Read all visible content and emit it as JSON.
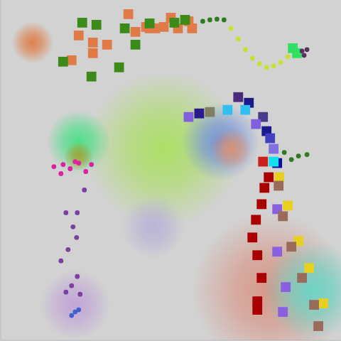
{
  "chart_data": {
    "type": "scatter",
    "xlim": [
      0,
      480
    ],
    "ylim": [
      0,
      480
    ],
    "tick_labels": false,
    "grid": false,
    "series": [
      {
        "marker": "cloud",
        "colors": [
          "#a8e05a",
          "#6a8adf",
          "#e0906a",
          "#40e080",
          "#a0a030",
          "#c0a0d8",
          "#b8b0d8",
          "#d89080",
          "#60d8c8",
          "#e07840"
        ],
        "x": [
          230,
          310,
          325,
          110,
          110,
          105,
          215,
          380,
          440,
          45
        ],
        "y": [
          270,
          280,
          270,
          280,
          260,
          50,
          160,
          70,
          70,
          420
        ],
        "size": [
          84,
          21,
          6,
          14,
          3,
          17,
          14,
          84,
          34,
          6
        ]
      },
      {
        "marker": "square",
        "color": "#e07b48",
        "x": [
          180,
          210,
          190,
          230,
          240,
          250,
          265,
          270,
          110,
          130,
          150,
          100,
          130,
          205,
          218
        ],
        "y": [
          460,
          440,
          435,
          442,
          455,
          440,
          450,
          440,
          430,
          420,
          417,
          395,
          405,
          442,
          440
        ]
      },
      {
        "marker": "square",
        "color": "#3c8a1a",
        "x": [
          115,
          135,
          175,
          190,
          210,
          88,
          167,
          128,
          245,
          260
        ],
        "y": [
          448,
          445,
          440,
          417,
          447,
          393,
          385,
          372,
          448,
          452
        ]
      },
      {
        "marker": "circle",
        "color": "#2e7a1e",
        "x": [
          285,
          295,
          305,
          315,
          400,
          410,
          420,
          432
        ],
        "y": [
          450,
          452,
          453,
          452,
          265,
          255,
          260,
          262
        ]
      },
      {
        "marker": "circle",
        "color": "#c8e030",
        "x": [
          325,
          335,
          345,
          355,
          365,
          375,
          385,
          395,
          405
        ],
        "y": [
          440,
          425,
          410,
          398,
          390,
          385,
          387,
          392,
          400
        ]
      },
      {
        "marker": "square",
        "color": "#30e060",
        "x": [
          412,
          418
        ],
        "y": [
          412,
          405
        ]
      },
      {
        "marker": "circle",
        "color": "#5a3060",
        "x": [
          425,
          432,
          428
        ],
        "y": [
          408,
          410,
          402
        ]
      },
      {
        "marker": "square",
        "colors": [
          "#4a2a7a",
          "#1a1a8a",
          "#30c0f0",
          "#30c0f0",
          "#4a3a8a",
          "#8060e0",
          "#1a1a8a",
          "#4040c0",
          "#8070e0",
          "#1010a0",
          "#cc2020",
          "#10e0f0",
          "#2a1a8a",
          "#8060e0",
          "#808060"
        ],
        "x": [
          335,
          350,
          320,
          345,
          370,
          360,
          375,
          380,
          385,
          390,
          370,
          385,
          280,
          265,
          295
        ],
        "y": [
          343,
          335,
          325,
          325,
          315,
          305,
          295,
          285,
          270,
          250,
          252,
          252,
          320,
          315,
          322
        ]
      },
      {
        "marker": "square",
        "color": "#aa0000",
        "x": [
          372,
          368,
          360,
          355,
          362,
          368,
          362,
          362,
          378
        ],
        "y": [
          215,
          192,
          170,
          145,
          120,
          88,
          55,
          43,
          230
        ]
      },
      {
        "marker": "square",
        "color": "#e8d020",
        "x": [
          393,
          405,
          420,
          435,
          455
        ],
        "y": [
          230,
          190,
          140,
          102,
          52
        ]
      },
      {
        "marker": "square",
        "color": "#8a60e0",
        "x": [
          390,
          390,
          402,
          398
        ],
        "y": [
          185,
          125,
          75,
          40
        ]
      },
      {
        "marker": "square",
        "color": "#9a6a5a",
        "x": [
          392,
          398,
          410,
          425,
          442,
          448
        ],
        "y": [
          218,
          175,
          132,
          88,
          50,
          20
        ]
      },
      {
        "marker": "circle",
        "color": "#e020a0",
        "x": [
          75,
          88,
          98,
          110,
          120,
          105,
          85,
          128
        ],
        "y": [
          245,
          248,
          242,
          250,
          238,
          252,
          235,
          248
        ]
      },
      {
        "marker": "circle",
        "color": "#7a40a0",
        "x": [
          118,
          108,
          102,
          107,
          95,
          85,
          108,
          100,
          92,
          112,
          92
        ],
        "y": [
          212,
          180,
          160,
          145,
          128,
          112,
          90,
          77,
          68,
          65,
          180
        ]
      },
      {
        "marker": "circle",
        "color": "#4060d0",
        "x": [
          105,
          100,
          110
        ],
        "y": [
          40,
          35,
          43
        ]
      }
    ]
  }
}
